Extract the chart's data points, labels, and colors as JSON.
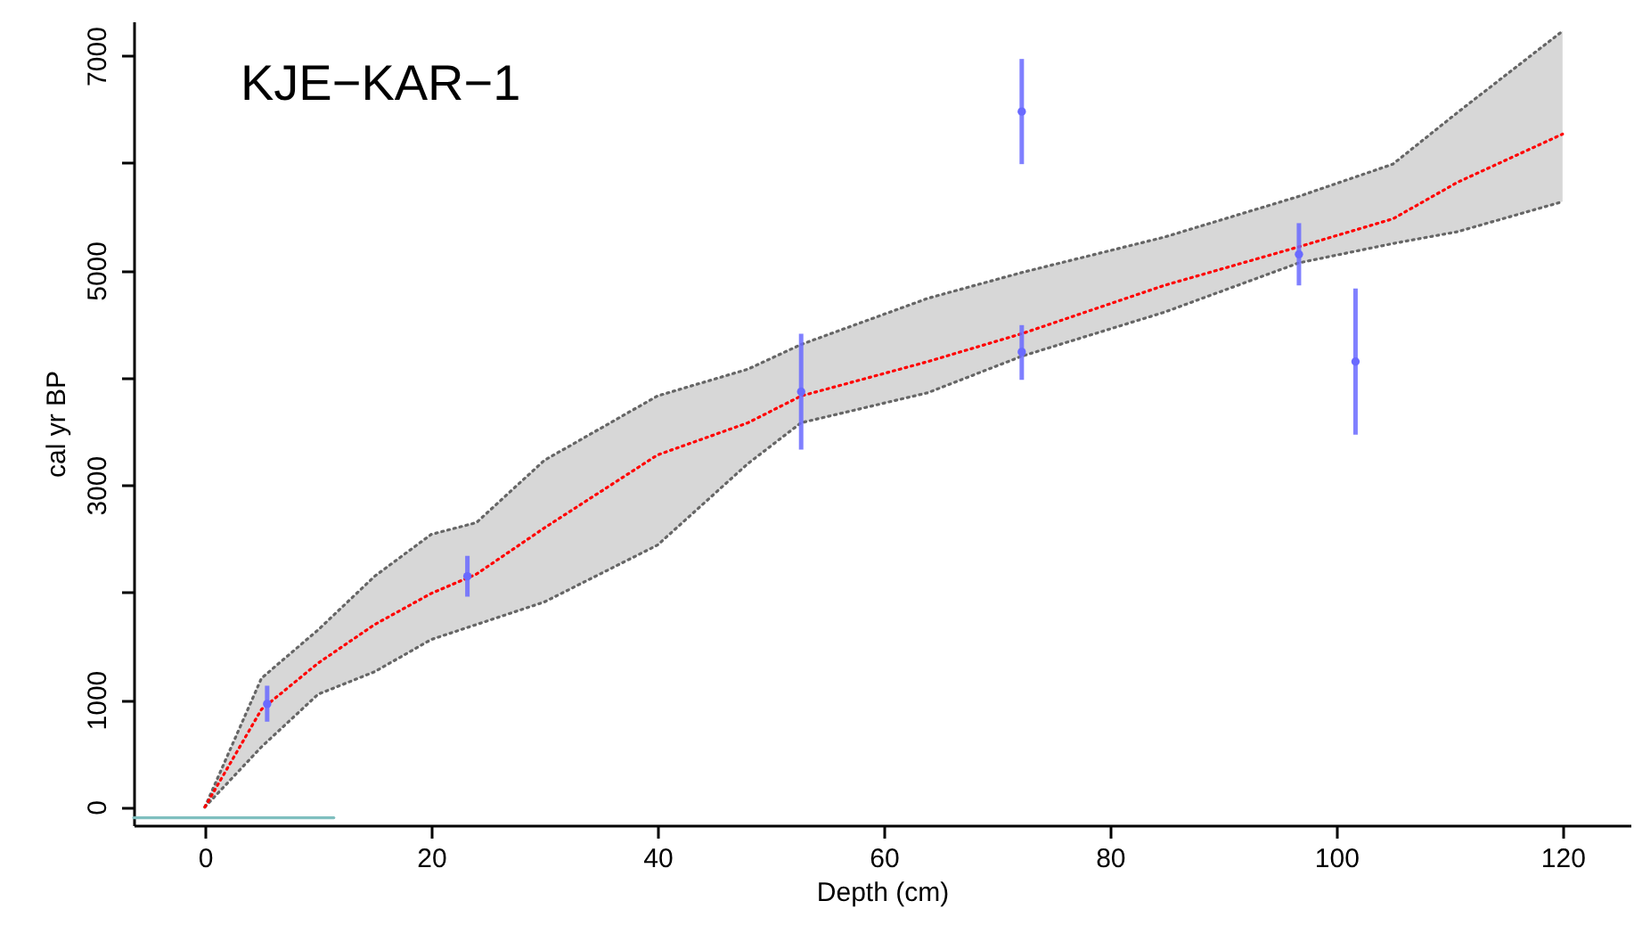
{
  "chart_data": {
    "type": "line",
    "xlabel": "Depth (cm)",
    "ylabel": "cal yr BP",
    "annotations": [
      "KJE−KAR−1"
    ],
    "xlim": [
      -6.3,
      126
    ],
    "ylim": [
      -170,
      7320
    ],
    "xticks": [
      0,
      20,
      40,
      60,
      80,
      100,
      120
    ],
    "yticks": [
      0,
      1000,
      {
        "value": 2000,
        "label": null
      },
      3000,
      {
        "value": 4000,
        "label": null
      },
      5000,
      {
        "value": 6000,
        "label": null
      },
      7000
    ],
    "grid": false,
    "series": [
      {
        "color": "#666666",
        "line_style": "dotted",
        "x": [
          0,
          5,
          10,
          15,
          20,
          24,
          30,
          40,
          48,
          52.7,
          63.9,
          72.2,
          84.8,
          96.7,
          105,
          110.7,
          120
        ],
        "values": [
          0,
          1200,
          1650,
          2150,
          2540,
          2650,
          3230,
          3830,
          4080,
          4310,
          4740,
          4980,
          5310,
          5690,
          5990,
          6470,
          7230
        ]
      },
      {
        "color": "#666666",
        "line_style": "dotted",
        "x": [
          0,
          5,
          10,
          15,
          20,
          24,
          30,
          40,
          48,
          52.7,
          63.9,
          72.2,
          84.8,
          96.7,
          105,
          110.7,
          120
        ],
        "values": [
          0,
          560,
          1050,
          1260,
          1560,
          1700,
          1910,
          2440,
          3200,
          3580,
          3860,
          4200,
          4610,
          5070,
          5250,
          5360,
          5640
        ]
      },
      {
        "color": "#ff0000",
        "line_style": "dotted",
        "x": [
          0,
          5,
          10,
          15,
          20,
          24,
          30,
          40,
          48,
          52.7,
          63.9,
          72.2,
          84.8,
          96.7,
          105,
          110.7,
          120
        ],
        "values": [
          0,
          910,
          1340,
          1700,
          1990,
          2170,
          2600,
          3280,
          3580,
          3830,
          4150,
          4410,
          4860,
          5220,
          5480,
          5820,
          6270
        ],
        "lower": [
          0,
          560,
          1050,
          1260,
          1560,
          1700,
          1910,
          2440,
          3200,
          3580,
          3860,
          4200,
          4610,
          5070,
          5250,
          5360,
          5640
        ],
        "upper": [
          0,
          1200,
          1650,
          2150,
          2540,
          2650,
          3230,
          3830,
          4080,
          4310,
          4740,
          4980,
          5310,
          5690,
          5990,
          6470,
          7230
        ]
      },
      {
        "color": "#7fbfbf",
        "line_style": "solid",
        "x": [
          -6.3,
          11.4
        ],
        "values": [
          -100,
          -100
        ]
      },
      {
        "type": "scatter",
        "marker": "circle",
        "color": "#6a6aff",
        "x": [
          5.5,
          23.2,
          52.7,
          72.2,
          72.2,
          96.7,
          101.7
        ],
        "values": [
          960,
          2150,
          3870,
          6480,
          4240,
          5150,
          4150
        ],
        "errors": [
          [
            795,
            1130
          ],
          [
            1960,
            2340
          ],
          [
            3330,
            4410
          ],
          [
            5990,
            6970
          ],
          [
            3980,
            4490
          ],
          [
            4860,
            5440
          ],
          [
            3470,
            4830
          ]
        ]
      }
    ]
  }
}
